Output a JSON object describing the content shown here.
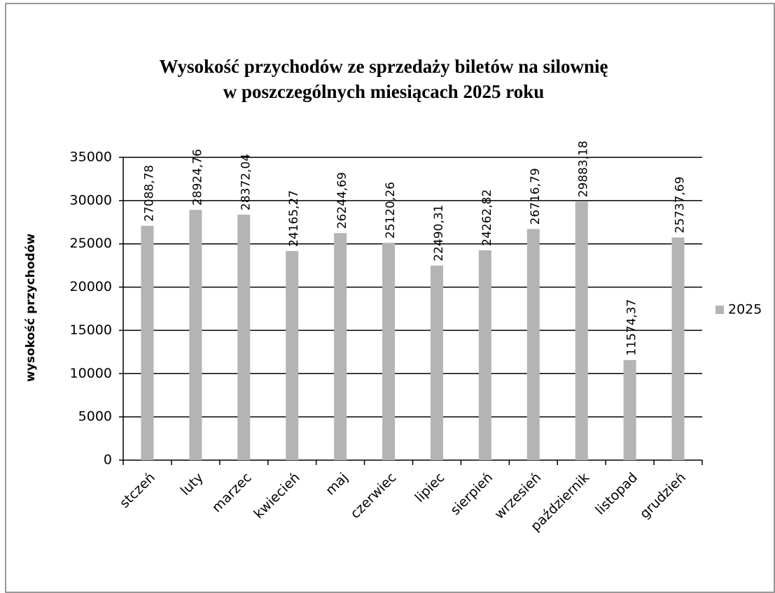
{
  "chart_data": {
    "type": "bar",
    "title": [
      "Wysokość przychodów ze sprzedaży biletów na silownię",
      "w poszczególnych miesiącach 2025 roku"
    ],
    "ylabel": "wysokość przychodów",
    "categories": [
      "stczeń",
      "luty",
      "marzec",
      "kwiecień",
      "maj",
      "czerwiec",
      "lipiec",
      "sierpień",
      "wrzesień",
      "październik",
      "listopad",
      "grudzień"
    ],
    "series": [
      {
        "name": "2025",
        "color": "#b4b4b4",
        "values": [
          27088.78,
          28924.76,
          28372.04,
          24165.27,
          26244.69,
          25120.26,
          22490.31,
          24262.82,
          26716.79,
          29883.18,
          11574.37,
          25737.69
        ],
        "value_labels": [
          "27088,78",
          "28924,76",
          "28372,04",
          "24165,27",
          "26244,69",
          "25120,26",
          "22490,31",
          "24262,82",
          "26716,79",
          "29883,18",
          "11574,37",
          "25737,69"
        ]
      }
    ],
    "ylim": [
      0,
      35000
    ],
    "yticks": [
      0,
      5000,
      10000,
      15000,
      20000,
      25000,
      30000,
      35000
    ],
    "grid": true,
    "legend": "right"
  }
}
